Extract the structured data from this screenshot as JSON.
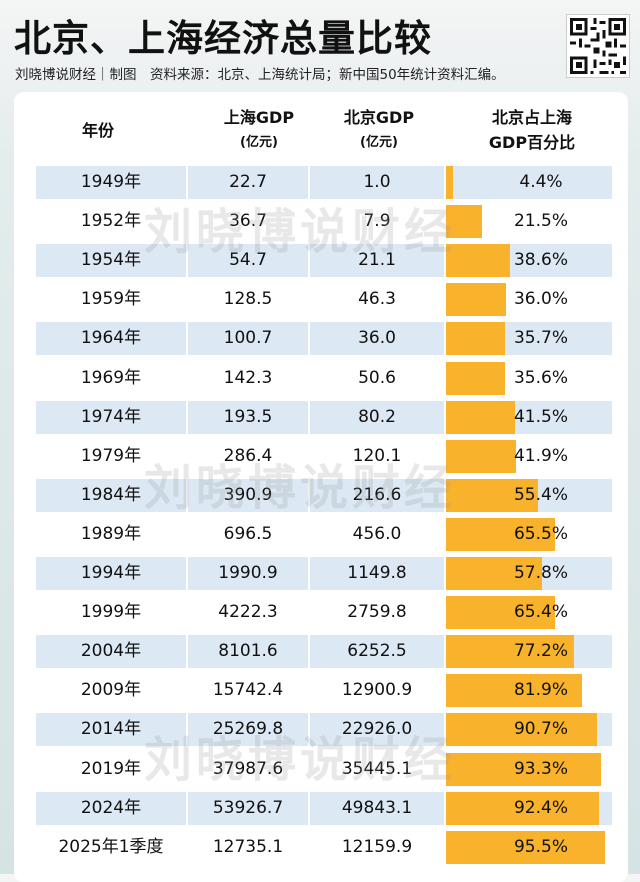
{
  "header": {
    "title": "北京、上海经济总量比较",
    "subtitle": "刘晓博说财经｜制图　资料来源：北京、上海统计局；新中国50年统计资料汇编。"
  },
  "watermark": "刘晓博说财经",
  "table": {
    "col_year": "年份",
    "col_sh_1": "上海GDP",
    "col_sh_2": "(亿元)",
    "col_bj_1": "北京GDP",
    "col_bj_2": "(亿元)",
    "col_pct_1": "北京占上海",
    "col_pct_2": "GDP百分比"
  },
  "chart_data": {
    "type": "table",
    "columns": [
      "年份",
      "上海GDP (亿元)",
      "北京GDP (亿元)",
      "北京占上海GDP百分比"
    ],
    "rows": [
      {
        "year": "1949年",
        "shanghai": "22.7",
        "beijing": "1.0",
        "pct_label": "4.4%",
        "pct": 4.4
      },
      {
        "year": "1952年",
        "shanghai": "36.7",
        "beijing": "7.9",
        "pct_label": "21.5%",
        "pct": 21.5
      },
      {
        "year": "1954年",
        "shanghai": "54.7",
        "beijing": "21.1",
        "pct_label": "38.6%",
        "pct": 38.6
      },
      {
        "year": "1959年",
        "shanghai": "128.5",
        "beijing": "46.3",
        "pct_label": "36.0%",
        "pct": 36.0
      },
      {
        "year": "1964年",
        "shanghai": "100.7",
        "beijing": "36.0",
        "pct_label": "35.7%",
        "pct": 35.7
      },
      {
        "year": "1969年",
        "shanghai": "142.3",
        "beijing": "50.6",
        "pct_label": "35.6%",
        "pct": 35.6
      },
      {
        "year": "1974年",
        "shanghai": "193.5",
        "beijing": "80.2",
        "pct_label": "41.5%",
        "pct": 41.5
      },
      {
        "year": "1979年",
        "shanghai": "286.4",
        "beijing": "120.1",
        "pct_label": "41.9%",
        "pct": 41.9
      },
      {
        "year": "1984年",
        "shanghai": "390.9",
        "beijing": "216.6",
        "pct_label": "55.4%",
        "pct": 55.4
      },
      {
        "year": "1989年",
        "shanghai": "696.5",
        "beijing": "456.0",
        "pct_label": "65.5%",
        "pct": 65.5
      },
      {
        "year": "1994年",
        "shanghai": "1990.9",
        "beijing": "1149.8",
        "pct_label": "57.8%",
        "pct": 57.8
      },
      {
        "year": "1999年",
        "shanghai": "4222.3",
        "beijing": "2759.8",
        "pct_label": "65.4%",
        "pct": 65.4
      },
      {
        "year": "2004年",
        "shanghai": "8101.6",
        "beijing": "6252.5",
        "pct_label": "77.2%",
        "pct": 77.2
      },
      {
        "year": "2009年",
        "shanghai": "15742.4",
        "beijing": "12900.9",
        "pct_label": "81.9%",
        "pct": 81.9
      },
      {
        "year": "2014年",
        "shanghai": "25269.8",
        "beijing": "22926.0",
        "pct_label": "90.7%",
        "pct": 90.7
      },
      {
        "year": "2019年",
        "shanghai": "37987.6",
        "beijing": "35445.1",
        "pct_label": "93.3%",
        "pct": 93.3
      },
      {
        "year": "2024年",
        "shanghai": "53926.7",
        "beijing": "49843.1",
        "pct_label": "92.4%",
        "pct": 92.4
      },
      {
        "year": "2025年1季度",
        "shanghai": "12735.1",
        "beijing": "12159.9",
        "pct_label": "95.5%",
        "pct": 95.5
      }
    ],
    "bar_color": "#f9b22b",
    "row_shade_color": "#dce8f4"
  }
}
